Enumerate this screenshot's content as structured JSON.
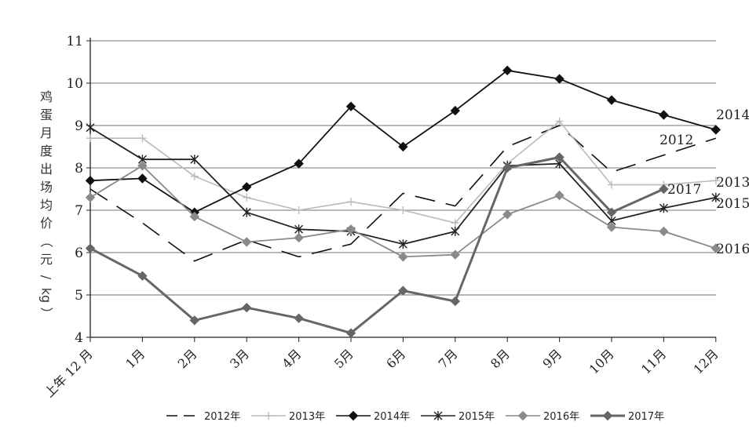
{
  "chart_data": {
    "type": "line",
    "title": "",
    "ylabel": "鸡蛋月度出场均价（元/kg）",
    "ylabel_chars": [
      "鸡",
      "蛋",
      "月",
      "度",
      "出",
      "场",
      "均",
      "价",
      "（",
      "元",
      "/",
      "kg",
      "）"
    ],
    "xlabel": "",
    "ylim": [
      4,
      11
    ],
    "yticks": [
      4,
      5,
      6,
      7,
      8,
      9,
      10,
      11
    ],
    "grid": true,
    "legend_position": "bottom",
    "categories": [
      "上年 12 月",
      "1月",
      "2月",
      "3月",
      "4月",
      "5月",
      "6月",
      "7月",
      "8月",
      "9月",
      "10月",
      "11月",
      "12月"
    ],
    "series": [
      {
        "name": "2012年",
        "end_label": "2012",
        "values": [
          7.5,
          6.7,
          5.8,
          6.3,
          5.9,
          6.2,
          7.4,
          7.1,
          8.5,
          9.0,
          7.9,
          8.3,
          8.7
        ]
      },
      {
        "name": "2013年",
        "end_label": "2013",
        "values": [
          8.7,
          8.7,
          7.8,
          7.3,
          7.0,
          7.2,
          7.0,
          6.7,
          8.1,
          9.1,
          7.6,
          7.6,
          7.7
        ]
      },
      {
        "name": "2014年",
        "end_label": "2014",
        "values": [
          7.7,
          7.75,
          6.95,
          7.55,
          8.1,
          9.45,
          8.5,
          9.35,
          10.3,
          10.1,
          9.6,
          9.25,
          8.9
        ]
      },
      {
        "name": "2015年",
        "end_label": "2015",
        "values": [
          8.95,
          8.2,
          8.2,
          6.95,
          6.55,
          6.5,
          6.2,
          6.5,
          8.05,
          8.1,
          6.75,
          7.05,
          7.3
        ]
      },
      {
        "name": "2016年",
        "end_label": "2016",
        "values": [
          7.3,
          8.05,
          6.85,
          6.25,
          6.35,
          6.55,
          5.9,
          5.95,
          6.9,
          7.35,
          6.6,
          6.5,
          6.1
        ]
      },
      {
        "name": "2017年",
        "end_label": "2017",
        "values": [
          6.1,
          5.45,
          4.4,
          4.7,
          4.45,
          4.1,
          5.1,
          4.85,
          8.0,
          8.25,
          6.95,
          7.5,
          null
        ]
      }
    ],
    "colors": {
      "2012年": "#111111",
      "2013年": "#bbbbbb",
      "2014年": "#111111",
      "2015年": "#222222",
      "2016年": "#8a8a8a",
      "2017年": "#666666",
      "grid": "#8f8f8f",
      "axis": "#222222"
    },
    "markers": {
      "2012年": "none",
      "2013年": "plus",
      "2014年": "diamond",
      "2015年": "asterisk",
      "2016年": "diamond",
      "2017年": "diamond"
    },
    "dashed": {
      "2012年": true
    }
  }
}
